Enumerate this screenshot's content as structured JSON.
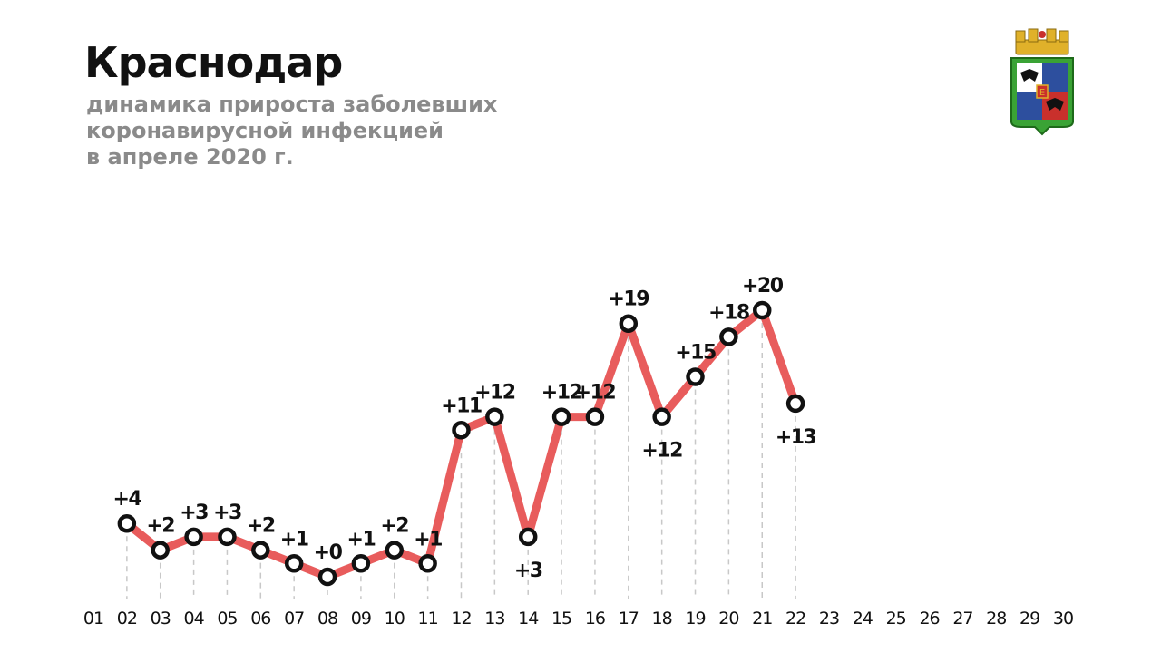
{
  "header": {
    "title": "Краснодар",
    "subtitle_lines": [
      "динамика прироста заболевших",
      "коронавирусной инфекцией",
      "в апреле 2020 г."
    ]
  },
  "emblem": {
    "icon": "krasnodar-coat-of-arms-icon"
  },
  "chart_data": {
    "type": "line",
    "title": "Краснодар",
    "subtitle": "динамика прироста заболевших коронавирусной инфекцией в апреле 2020 г.",
    "categories": [
      "01",
      "02",
      "03",
      "04",
      "05",
      "06",
      "07",
      "08",
      "09",
      "10",
      "11",
      "12",
      "13",
      "14",
      "15",
      "16",
      "17",
      "18",
      "19",
      "20",
      "21",
      "22",
      "23",
      "24",
      "25",
      "26",
      "27",
      "28",
      "29",
      "30"
    ],
    "series": [
      {
        "x": [
          "02",
          "03",
          "04",
          "05",
          "06",
          "07",
          "08",
          "09",
          "10",
          "11",
          "12",
          "13",
          "14",
          "15",
          "16",
          "17",
          "18",
          "19",
          "20",
          "21",
          "22"
        ],
        "values": [
          4,
          2,
          3,
          3,
          2,
          1,
          0,
          1,
          2,
          1,
          11,
          12,
          3,
          12,
          12,
          19,
          12,
          15,
          18,
          20,
          13
        ],
        "labels": [
          "+4",
          "+2",
          "+3",
          "+3",
          "+2",
          "+1",
          "+0",
          "+1",
          "+2",
          "+1",
          "+11",
          "+12",
          "+3",
          "+12",
          "+12",
          "+19",
          "+12",
          "+15",
          "+18",
          "+20",
          "+13"
        ],
        "color": "#e85c5c"
      }
    ],
    "grid": false,
    "legend": "none",
    "line_color": "#e85c5c",
    "marker_color": "#111111",
    "dash_color": "#c8c8c8"
  }
}
